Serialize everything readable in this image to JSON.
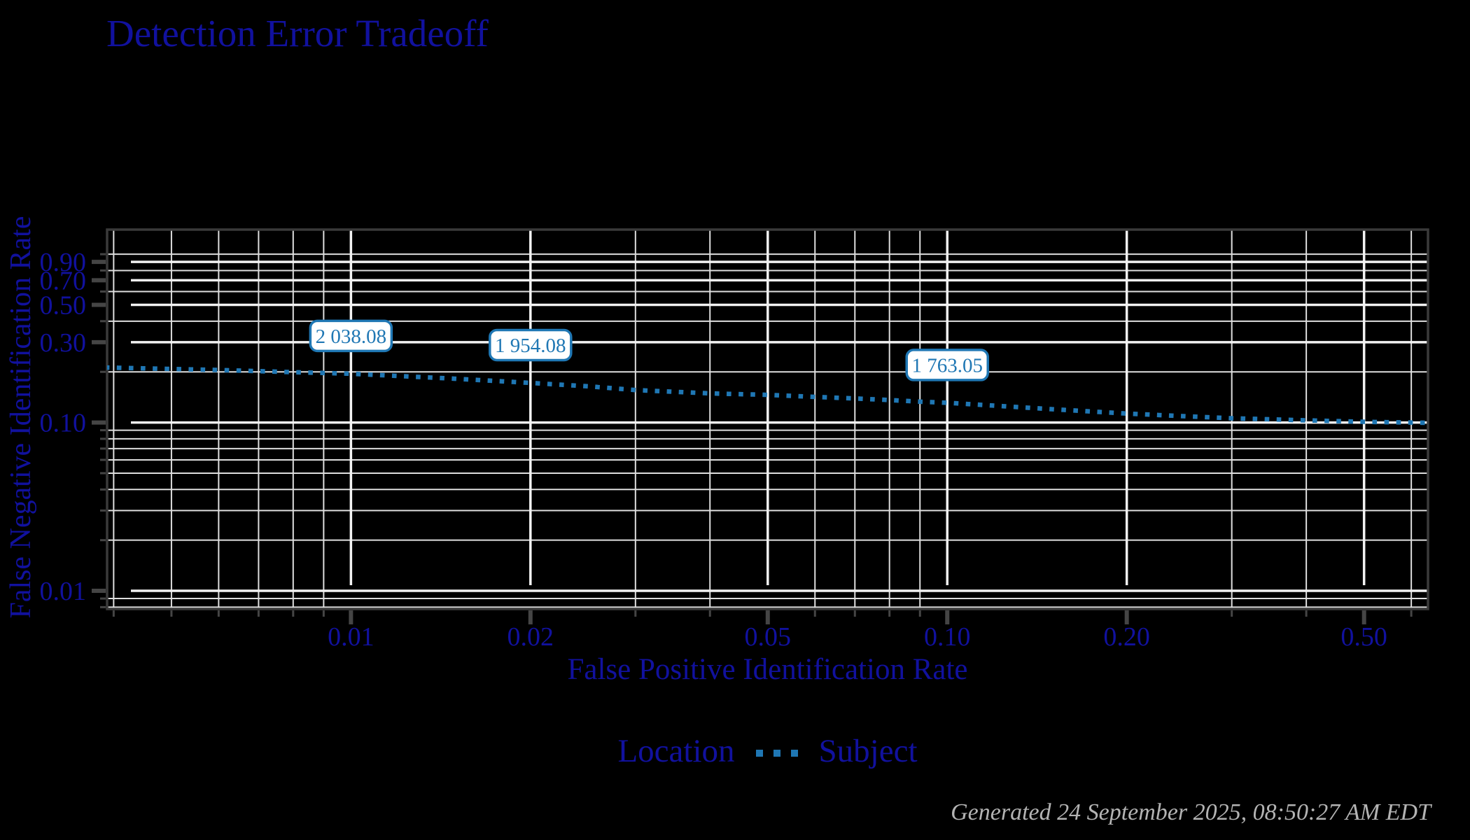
{
  "title": "Detection Error Tradeoff",
  "footer": "Generated 24 September 2025, 08:50:27 AM EDT",
  "colors": {
    "background": "#000000",
    "text_navy": "#11119e",
    "curve_blue": "#1f77b4",
    "grid_minor": "#dedede",
    "grid_major": "#f2f2f2",
    "axis_border": "#3a3a3a",
    "tick_mark": "#454545",
    "annotation_text": "#1f77b4",
    "annotation_border": "#1f77b4",
    "annotation_bg": "#ffffff",
    "footer_gray": "#b3b3b3"
  },
  "chart_data": {
    "type": "line",
    "title": "Detection Error Tradeoff",
    "xlabel": "False Positive Identification Rate",
    "ylabel": "False Negative Identification Rate",
    "xscale": "log",
    "yscale": "log",
    "xlim": [
      0.0039,
      0.64
    ],
    "ylim": [
      0.0078,
      1.4
    ],
    "grid": "on",
    "x_ticks": [
      {
        "v": 0.01,
        "label": "0.01"
      },
      {
        "v": 0.02,
        "label": "0.02"
      },
      {
        "v": 0.05,
        "label": "0.05"
      },
      {
        "v": 0.1,
        "label": "0.10"
      },
      {
        "v": 0.2,
        "label": "0.20"
      },
      {
        "v": 0.5,
        "label": "0.50"
      }
    ],
    "y_ticks": [
      {
        "v": 0.9,
        "label": "0.90"
      },
      {
        "v": 0.7,
        "label": "0.70"
      },
      {
        "v": 0.5,
        "label": "0.50"
      },
      {
        "v": 0.3,
        "label": "0.30"
      },
      {
        "v": 0.1,
        "label": "0.10"
      },
      {
        "v": 0.01,
        "label": "0.01"
      }
    ],
    "x_grid_minor": [
      0.004,
      0.005,
      0.006,
      0.007,
      0.008,
      0.009,
      0.03,
      0.04,
      0.06,
      0.07,
      0.08,
      0.09,
      0.3,
      0.4,
      0.6
    ],
    "y_grid_minor": [
      1.0,
      0.8,
      0.6,
      0.4,
      0.2,
      0.09,
      0.08,
      0.07,
      0.06,
      0.05,
      0.04,
      0.03,
      0.02,
      0.009,
      0.008
    ],
    "series": [
      {
        "name": "Subject",
        "color": "#1f77b4",
        "style": "dotted",
        "points": [
          [
            0.0039,
            0.212
          ],
          [
            0.005,
            0.208
          ],
          [
            0.006,
            0.205
          ],
          [
            0.007,
            0.202
          ],
          [
            0.008,
            0.199
          ],
          [
            0.009,
            0.197
          ],
          [
            0.01,
            0.195
          ],
          [
            0.012,
            0.189
          ],
          [
            0.015,
            0.182
          ],
          [
            0.02,
            0.172
          ],
          [
            0.025,
            0.164
          ],
          [
            0.03,
            0.156
          ],
          [
            0.04,
            0.149
          ],
          [
            0.05,
            0.146
          ],
          [
            0.06,
            0.142
          ],
          [
            0.07,
            0.139
          ],
          [
            0.08,
            0.136
          ],
          [
            0.09,
            0.133
          ],
          [
            0.1,
            0.131
          ],
          [
            0.12,
            0.126
          ],
          [
            0.15,
            0.12
          ],
          [
            0.2,
            0.113
          ],
          [
            0.25,
            0.109
          ],
          [
            0.3,
            0.106
          ],
          [
            0.4,
            0.103
          ],
          [
            0.5,
            0.101
          ],
          [
            0.6,
            0.1
          ],
          [
            0.64,
            0.0995
          ]
        ]
      }
    ],
    "annotations": [
      {
        "x": 0.01,
        "y": 0.195,
        "label": "2 038.08"
      },
      {
        "x": 0.02,
        "y": 0.172,
        "label": "1 954.08"
      },
      {
        "x": 0.1,
        "y": 0.131,
        "label": "1 763.05"
      }
    ],
    "legend": {
      "position": "bottom",
      "title": "Location",
      "entries": [
        {
          "label": "Subject",
          "marker": "dotted-line"
        }
      ]
    }
  }
}
